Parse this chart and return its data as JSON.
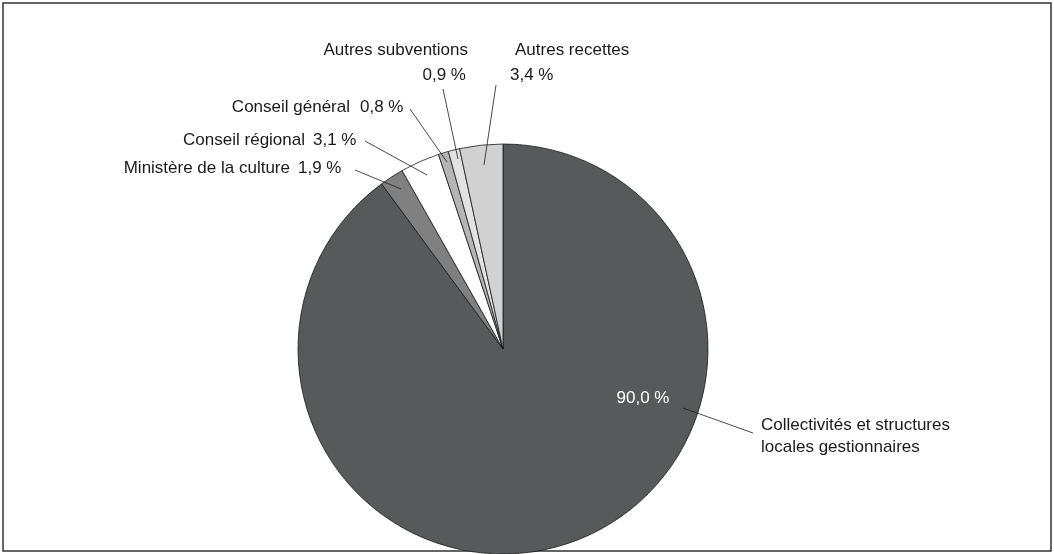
{
  "chart_data": {
    "type": "pie",
    "categories": [
      "Collectivités et structures locales gestionnaires",
      "Ministère de la culture",
      "Conseil régional",
      "Conseil général",
      "Autres subventions",
      "Autres recettes"
    ],
    "values": [
      90.0,
      1.9,
      3.1,
      0.8,
      0.9,
      3.4
    ],
    "value_labels": [
      "90,0 %",
      "1,9 %",
      "3,1 %",
      "0,8 %",
      "0,9 %",
      "3,4 %"
    ],
    "colors": [
      "#58595b",
      "#808080",
      "#ffffff",
      "#b5b5b5",
      "#e2e2e2",
      "#d1d1d1"
    ]
  }
}
